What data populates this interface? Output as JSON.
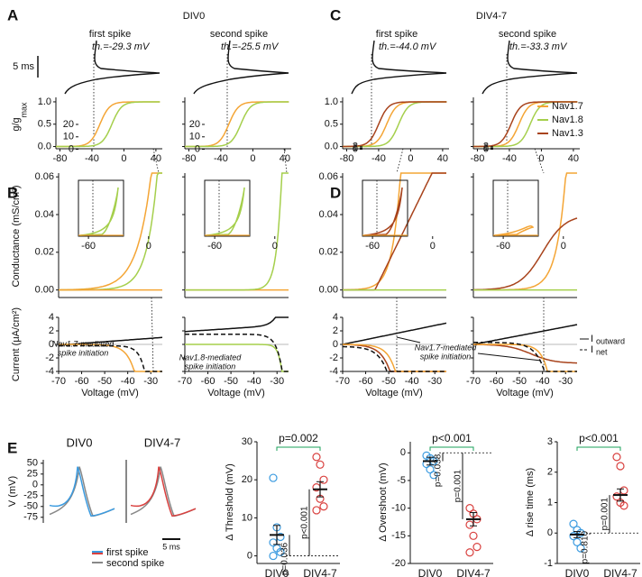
{
  "A": {
    "panel": "A",
    "group": "DIV0",
    "titles": [
      "first spike",
      "second spike"
    ],
    "thresholds": [
      "th.=-29.3 mV",
      "th.=-25.5 mV"
    ],
    "scale_bar": "5 ms",
    "y_label": "g/g",
    "y_label_sub": "max",
    "xlim": [
      -85,
      48
    ],
    "ylim": [
      -0.05,
      1.1
    ],
    "xticks": [
      -80,
      -40,
      0,
      40
    ],
    "yticks": [
      {
        "value": 0,
        "label": "0.0"
      },
      {
        "value": 0.5,
        "label": "0.5"
      },
      {
        "value": 1,
        "label": "1.0"
      }
    ]
  },
  "C": {
    "panel": "C",
    "group": "DIV4-7",
    "titles": [
      "first spike",
      "second spike"
    ],
    "thresholds": [
      "th.=-44.0 mV",
      "th.=-33.3 mV"
    ],
    "xlim": [
      -85,
      48
    ],
    "ylim": [
      -0.05,
      1.1
    ],
    "xticks": [
      -80,
      -40,
      0,
      40
    ],
    "yticks": [
      {
        "value": 0,
        "label": "0.0"
      },
      {
        "value": 0.5,
        "label": "0.5"
      },
      {
        "value": 1,
        "label": "1.0"
      }
    ],
    "legend": [
      {
        "name": "Nav1.7",
        "color": "#f4a535"
      },
      {
        "name": "Nav1.8",
        "color": "#a5cf4c"
      },
      {
        "name": "Nav1.3",
        "color": "#a8431c"
      }
    ]
  },
  "B": {
    "panel": "B",
    "y_label_top": "Conductance (mS/cm²)",
    "y_label_bottom": "Current (μA/cm²)",
    "x_label": "Voltage (mV)",
    "xlim": [
      -70,
      -25
    ],
    "xticks": [
      -70,
      -60,
      -50,
      -40,
      -30
    ],
    "top_ylim": [
      -0.004,
      0.062
    ],
    "top_yticks": [
      {
        "value": 0,
        "label": "0.00"
      },
      {
        "value": 0.02,
        "label": "0.02"
      },
      {
        "value": 0.04,
        "label": "0.04"
      },
      {
        "value": 0.06,
        "label": "0.06"
      }
    ],
    "bottom_ylim": [
      -4,
      4
    ],
    "bottom_yticks": [
      -4,
      -2,
      0,
      2,
      4
    ],
    "inset_xticks": [
      -60,
      0
    ],
    "inset_yticks": [
      0,
      10,
      20
    ],
    "annotations": [
      [
        "Nav1.7-mediated",
        "spike initiation"
      ],
      [
        "Nav1.8-mediated",
        "spike initiation"
      ]
    ]
  },
  "D": {
    "panel": "D",
    "x_label": "Voltage (mV)",
    "xlim": [
      -70,
      -25
    ],
    "xticks": [
      -70,
      -60,
      -50,
      -40,
      -30
    ],
    "top_ylim": [
      -0.004,
      0.062
    ],
    "top_yticks": [
      {
        "value": 0,
        "label": "0.00"
      },
      {
        "value": 0.02,
        "label": "0.02"
      },
      {
        "value": 0.04,
        "label": "0.04"
      },
      {
        "value": 0.06,
        "label": "0.06"
      }
    ],
    "bottom_ylim": [
      -4,
      4
    ],
    "bottom_yticks": [
      -4,
      -2,
      0,
      2,
      4
    ],
    "inset_xticks": [
      -60,
      0
    ],
    "inset_yticks": [
      0,
      1,
      2
    ],
    "annotations": [
      [
        "Nav1.7-mediated",
        "spike initiation"
      ]
    ],
    "current_symbol": "I",
    "current_legend": [
      "outward",
      "net"
    ]
  },
  "E": {
    "panel": "E",
    "trace": {
      "groups": [
        "DIV0",
        "DIV4-7"
      ],
      "y_label": "V (mV)",
      "ylim": [
        -88,
        58
      ],
      "yticks": [
        50,
        25,
        0,
        -25,
        -50,
        -75
      ],
      "legend": [
        {
          "name": "first spike",
          "colors": [
            "#3b9be0",
            "#d9413f"
          ]
        },
        {
          "name": "second spike",
          "colors": [
            "#888888"
          ]
        }
      ],
      "scale_bar": "5 ms"
    },
    "categories": [
      "DIV0",
      "DIV4-7"
    ],
    "colors": [
      "#3b9be0",
      "#d9413f"
    ],
    "stats": [
      {
        "y_label": "Δ Threshold (mV)",
        "ylim": [
          -2,
          30
        ],
        "yticks": [
          0,
          10,
          20,
          30
        ],
        "values": [
          [
            20.5,
            7.5,
            5,
            3.5,
            2,
            1,
            0
          ],
          [
            26,
            24,
            20,
            18,
            15,
            13,
            12
          ]
        ],
        "means": [
          5.5,
          17.5
        ],
        "sems": [
          2.5,
          2
        ],
        "p_within": [
          "p=0.036",
          "p<0.001"
        ],
        "p_between": "p=0.002"
      },
      {
        "y_label": "Δ Overshoot (mV)",
        "ylim": [
          -20,
          2
        ],
        "yticks": [
          0,
          -5,
          -10,
          -15,
          -20
        ],
        "values": [
          [
            -0.5,
            -1,
            -1.5,
            -2,
            -3,
            -4
          ],
          [
            -10,
            -11,
            -12,
            -13,
            -15,
            -17,
            -18
          ]
        ],
        "means": [
          -1.5,
          -12
        ],
        "sems": [
          0.7,
          1.2
        ],
        "p_within": [
          "p=0.038",
          "p=0.001"
        ],
        "p_between": "p<0.001"
      },
      {
        "y_label": "Δ rise time (ms)",
        "ylim": [
          -1,
          3
        ],
        "yticks": [
          -1,
          0,
          1,
          2,
          3
        ],
        "values": [
          [
            0.3,
            0.1,
            0,
            -0.1,
            -0.3,
            -0.5
          ],
          [
            2.5,
            2.2,
            1.4,
            1.2,
            1,
            0.9
          ]
        ],
        "means": [
          -0.05,
          1.25
        ],
        "sems": [
          0.1,
          0.2
        ],
        "p_within": [
          "p=0.810",
          "p=0.001"
        ],
        "p_between": "p<0.001"
      }
    ]
  }
}
